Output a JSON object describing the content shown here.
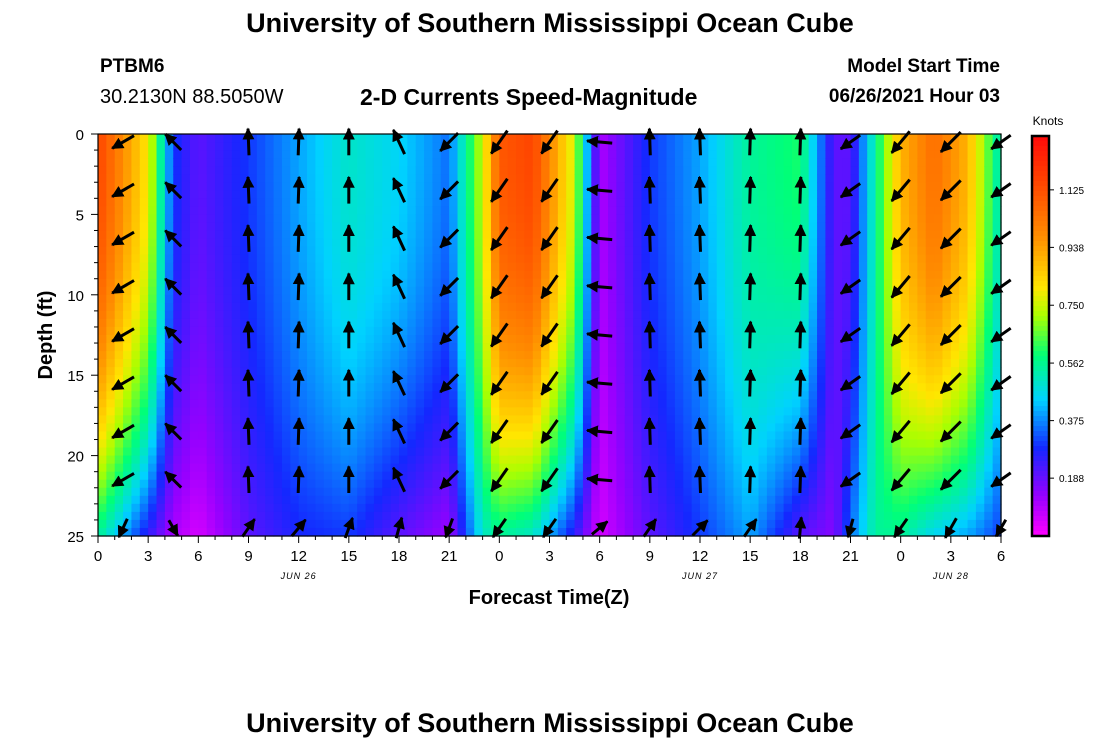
{
  "header": {
    "title": "University of Southern Mississippi Ocean Cube",
    "station": "PTBM6",
    "coordinates": "30.2130N  88.5050W",
    "plot_title": "2-D Currents Speed-Magnitude",
    "model_start_label": "Model Start Time",
    "model_start_value": "06/26/2021 Hour 03"
  },
  "footer": {
    "title": "University of Southern Mississippi Ocean Cube"
  },
  "chart_data": {
    "type": "heatmap",
    "title": "2-D Currents Speed-Magnitude",
    "xlabel": "Forecast Time(Z)",
    "ylabel": "Depth (ft)",
    "x_range_hours": [
      0,
      54
    ],
    "ylim": [
      0,
      25
    ],
    "y_ticks": [
      "0",
      "5",
      "10",
      "15",
      "20",
      "25"
    ],
    "x_ticks": [
      "0",
      "3",
      "6",
      "9",
      "12",
      "15",
      "18",
      "21",
      "0",
      "3",
      "6",
      "9",
      "12",
      "15",
      "18",
      "21",
      "0",
      "3",
      "6"
    ],
    "date_labels": [
      {
        "label": "JUN 26",
        "hour": 12
      },
      {
        "label": "JUN 27",
        "hour": 36
      },
      {
        "label": "JUN 28",
        "hour": 51
      }
    ],
    "colorbar": {
      "unit": "Knots",
      "min": 0.0,
      "max": 1.3,
      "ticks": [
        "1.125",
        "0.938",
        "0.750",
        "0.562",
        "0.375",
        "0.188"
      ],
      "tick_values": [
        1.125,
        0.938,
        0.75,
        0.562,
        0.375,
        0.188
      ]
    },
    "speed_profiles": {
      "hours": [
        0,
        3,
        4.5,
        6,
        9,
        12,
        15,
        18,
        21,
        23,
        24,
        26,
        28.5,
        30,
        33,
        36,
        39,
        42,
        44,
        45,
        46.5,
        48,
        50,
        52,
        54
      ],
      "surface_knots": [
        1.15,
        0.8,
        0.3,
        0.2,
        0.3,
        0.4,
        0.5,
        0.45,
        0.35,
        0.75,
        1.1,
        1.15,
        0.75,
        0.1,
        0.3,
        0.4,
        0.55,
        0.6,
        0.2,
        0.2,
        0.55,
        0.9,
        1.05,
        0.9,
        0.5
      ],
      "bottom_knots": [
        0.55,
        0.25,
        0.1,
        0.05,
        0.2,
        0.28,
        0.3,
        0.2,
        0.12,
        0.5,
        0.55,
        0.5,
        0.25,
        0.05,
        0.2,
        0.3,
        0.4,
        0.2,
        0.15,
        0.35,
        0.55,
        0.55,
        0.45,
        0.4,
        0.3
      ]
    },
    "vectors": {
      "hours": [
        1.5,
        4.5,
        9,
        12,
        15,
        18,
        21,
        24,
        27,
        30,
        33,
        36,
        39,
        42,
        45,
        48,
        51,
        54
      ],
      "depths_ft": [
        0.5,
        3.5,
        6.5,
        9.5,
        12.5,
        15.5,
        18.5,
        21.5,
        24.5
      ],
      "directions_deg": [
        240,
        315,
        358,
        2,
        0,
        335,
        225,
        215,
        215,
        275,
        358,
        358,
        2,
        2,
        235,
        220,
        225,
        235
      ],
      "bottom_directions_deg": [
        205,
        150,
        35,
        40,
        20,
        15,
        200,
        215,
        215,
        50,
        35,
        45,
        35,
        5,
        195,
        215,
        210,
        210
      ],
      "lengths": [
        0.9,
        0.8,
        0.95,
        0.95,
        0.95,
        0.95,
        0.9,
        1.0,
        1.0,
        0.9,
        0.95,
        0.95,
        0.95,
        0.95,
        0.85,
        1.0,
        1.0,
        0.85
      ]
    }
  }
}
